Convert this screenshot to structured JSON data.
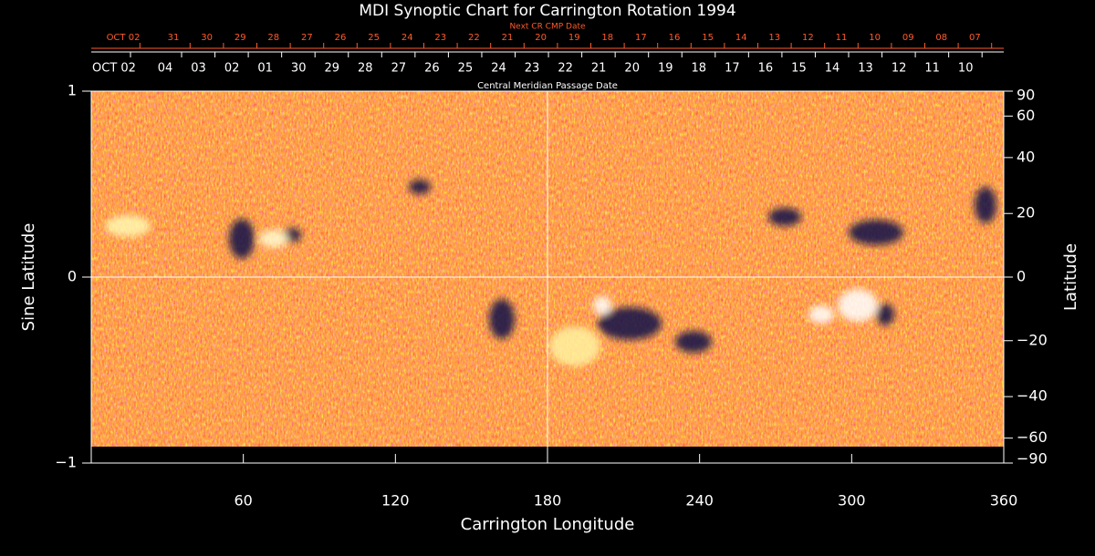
{
  "chart_data": {
    "type": "image",
    "title": "MDI Synoptic Chart for Carrington Rotation 1994",
    "top_axis": {
      "label": "Next CR CMP Date",
      "color": "#ff5a2a",
      "dates": [
        "OCT 02",
        "31",
        "30",
        "29",
        "28",
        "27",
        "26",
        "25",
        "24",
        "23",
        "22",
        "21",
        "20",
        "19",
        "18",
        "17",
        "16",
        "15",
        "14",
        "13",
        "12",
        "11",
        "10",
        "09",
        "08",
        "07"
      ]
    },
    "date_axis": {
      "label": "Central Meridian Passage Date",
      "dates": [
        "OCT 02",
        "04",
        "03",
        "02",
        "01",
        "30",
        "29",
        "28",
        "27",
        "26",
        "25",
        "24",
        "23",
        "22",
        "21",
        "20",
        "19",
        "18",
        "17",
        "16",
        "15",
        "14",
        "13",
        "12",
        "11",
        "10"
      ]
    },
    "xlabel": "Carrington Longitude",
    "ylabel": "Sine Latitude",
    "y2label": "Latitude",
    "xlim": [
      0,
      360
    ],
    "xticks": [
      60,
      120,
      180,
      240,
      300,
      360
    ],
    "ylim": [
      -1,
      1
    ],
    "yticks": [
      {
        "value": -1,
        "label": "−1"
      },
      0,
      1
    ],
    "y2lim": [
      -90,
      90
    ],
    "y2scale": "sine",
    "y2ticks": [
      90,
      60,
      40,
      20,
      0,
      {
        "value": -20,
        "label": "−20"
      },
      {
        "value": -40,
        "label": "−40"
      },
      {
        "value": -60,
        "label": "−60"
      },
      {
        "value": -90,
        "label": "−90"
      }
    ]
  }
}
